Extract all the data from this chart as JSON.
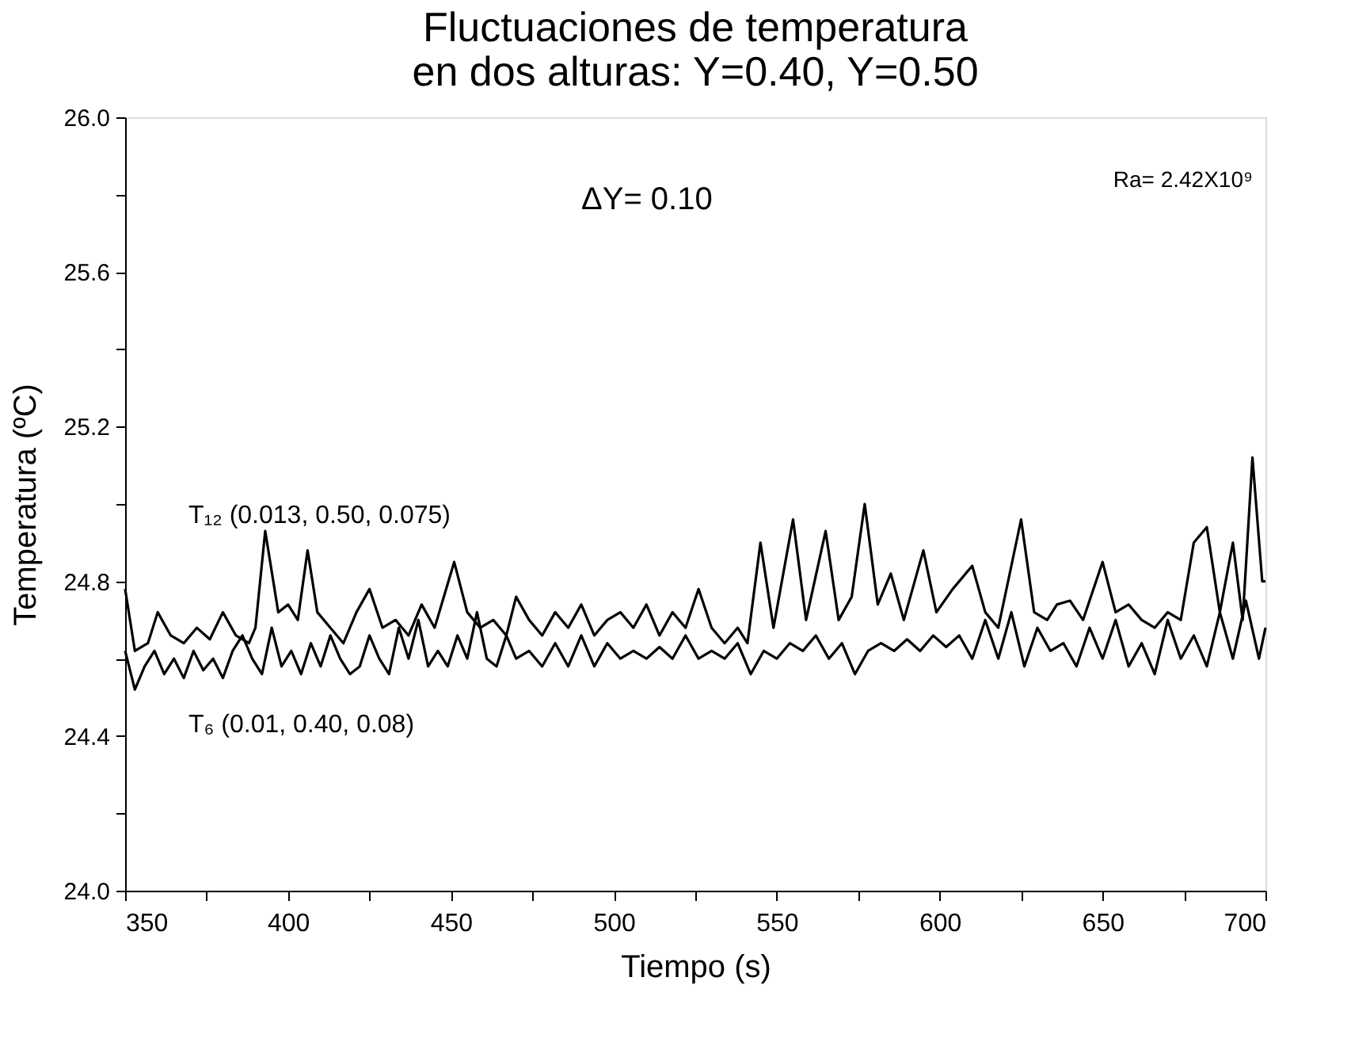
{
  "chart_data": {
    "type": "line",
    "title": [
      "Fluctuaciones de temperatura",
      "en dos alturas: Y=0.40, Y=0.50"
    ],
    "xlabel": "Tiempo  (s)",
    "ylabel": "Temperatura  (ºC)",
    "xlim": [
      350,
      700
    ],
    "ylim": [
      24.0,
      26.0
    ],
    "xticks": [
      350,
      {
        "value": 375,
        "label": null
      },
      400,
      {
        "value": 425,
        "label": null
      },
      450,
      {
        "value": 475,
        "label": null
      },
      500,
      {
        "value": 525,
        "label": null
      },
      550,
      {
        "value": 575,
        "label": null
      },
      600,
      {
        "value": 625,
        "label": null
      },
      650,
      {
        "value": 675,
        "label": null
      },
      700
    ],
    "yticks": [
      {
        "value": 24.0,
        "label": "24.0"
      },
      {
        "value": 24.2,
        "label": null
      },
      24.4,
      {
        "value": 24.6,
        "label": null
      },
      24.8,
      {
        "value": 25.0,
        "label": null
      },
      25.2,
      {
        "value": 25.4,
        "label": null
      },
      25.6,
      {
        "value": 25.8,
        "label": null
      },
      {
        "value": 26.0,
        "label": "26.0"
      }
    ],
    "grid": false,
    "legend": false,
    "marker": "none",
    "line_style": "solid",
    "annotations": [
      "ΔY= 0.10",
      "Ra= 2.42X10⁹"
    ],
    "series": [
      {
        "name": "T₁₂  (0.013, 0.50, 0.075)",
        "color": "#000000",
        "x": [
          350,
          353,
          357,
          360,
          364,
          368,
          372,
          376,
          380,
          384,
          388,
          390,
          393,
          397,
          400,
          403,
          406,
          409,
          413,
          417,
          421,
          425,
          429,
          433,
          437,
          441,
          445,
          451,
          455,
          459,
          463,
          467,
          470,
          474,
          478,
          482,
          486,
          490,
          494,
          498,
          502,
          506,
          510,
          514,
          518,
          522,
          526,
          530,
          534,
          538,
          541,
          545,
          549,
          555,
          559,
          565,
          569,
          573,
          577,
          581,
          585,
          589,
          595,
          599,
          604,
          610,
          614,
          618,
          625,
          629,
          633,
          636,
          640,
          644,
          650,
          654,
          658,
          662,
          666,
          670,
          674,
          678,
          682,
          686,
          690,
          693,
          696,
          699,
          700
        ],
        "values": [
          24.78,
          24.62,
          24.64,
          24.72,
          24.66,
          24.64,
          24.68,
          24.65,
          24.72,
          24.66,
          24.64,
          24.68,
          24.93,
          24.72,
          24.74,
          24.7,
          24.88,
          24.72,
          24.68,
          24.64,
          24.72,
          24.78,
          24.68,
          24.7,
          24.66,
          24.74,
          24.68,
          24.85,
          24.72,
          24.68,
          24.7,
          24.66,
          24.76,
          24.7,
          24.66,
          24.72,
          24.68,
          24.74,
          24.66,
          24.7,
          24.72,
          24.68,
          24.74,
          24.66,
          24.72,
          24.68,
          24.78,
          24.68,
          24.64,
          24.68,
          24.64,
          24.9,
          24.68,
          24.96,
          24.7,
          24.93,
          24.7,
          24.76,
          25.0,
          24.74,
          24.82,
          24.7,
          24.88,
          24.72,
          24.78,
          24.84,
          24.72,
          24.68,
          24.96,
          24.72,
          24.7,
          24.74,
          24.75,
          24.7,
          24.85,
          24.72,
          24.74,
          24.7,
          24.68,
          24.72,
          24.7,
          24.9,
          24.94,
          24.72,
          24.9,
          24.7,
          25.12,
          24.8,
          24.8
        ]
      },
      {
        "name": "T₆  (0.01, 0.40, 0.08)",
        "color": "#000000",
        "x": [
          350,
          353,
          356,
          359,
          362,
          365,
          368,
          371,
          374,
          377,
          380,
          383,
          386,
          389,
          392,
          395,
          398,
          401,
          404,
          407,
          410,
          413,
          416,
          419,
          422,
          425,
          428,
          431,
          434,
          437,
          440,
          443,
          446,
          449,
          452,
          455,
          458,
          461,
          464,
          467,
          470,
          474,
          478,
          482,
          486,
          490,
          494,
          498,
          502,
          506,
          510,
          514,
          518,
          522,
          526,
          530,
          534,
          538,
          542,
          546,
          550,
          554,
          558,
          562,
          566,
          570,
          574,
          578,
          582,
          586,
          590,
          594,
          598,
          602,
          606,
          610,
          614,
          618,
          622,
          626,
          630,
          634,
          638,
          642,
          646,
          650,
          654,
          658,
          662,
          666,
          670,
          674,
          678,
          682,
          686,
          690,
          694,
          698,
          700
        ],
        "values": [
          24.62,
          24.52,
          24.58,
          24.62,
          24.56,
          24.6,
          24.55,
          24.62,
          24.57,
          24.6,
          24.55,
          24.62,
          24.66,
          24.6,
          24.56,
          24.68,
          24.58,
          24.62,
          24.56,
          24.64,
          24.58,
          24.66,
          24.6,
          24.56,
          24.58,
          24.66,
          24.6,
          24.56,
          24.68,
          24.6,
          24.7,
          24.58,
          24.62,
          24.58,
          24.66,
          24.6,
          24.72,
          24.6,
          24.58,
          24.66,
          24.6,
          24.62,
          24.58,
          24.64,
          24.58,
          24.66,
          24.58,
          24.64,
          24.6,
          24.62,
          24.6,
          24.63,
          24.6,
          24.66,
          24.6,
          24.62,
          24.6,
          24.64,
          24.56,
          24.62,
          24.6,
          24.64,
          24.62,
          24.66,
          24.6,
          24.64,
          24.56,
          24.62,
          24.64,
          24.62,
          24.65,
          24.62,
          24.66,
          24.63,
          24.66,
          24.6,
          24.7,
          24.6,
          24.72,
          24.58,
          24.68,
          24.62,
          24.64,
          24.58,
          24.68,
          24.6,
          24.7,
          24.58,
          24.64,
          24.56,
          24.7,
          24.6,
          24.66,
          24.58,
          24.72,
          24.6,
          24.75,
          24.6,
          24.68
        ]
      }
    ]
  }
}
